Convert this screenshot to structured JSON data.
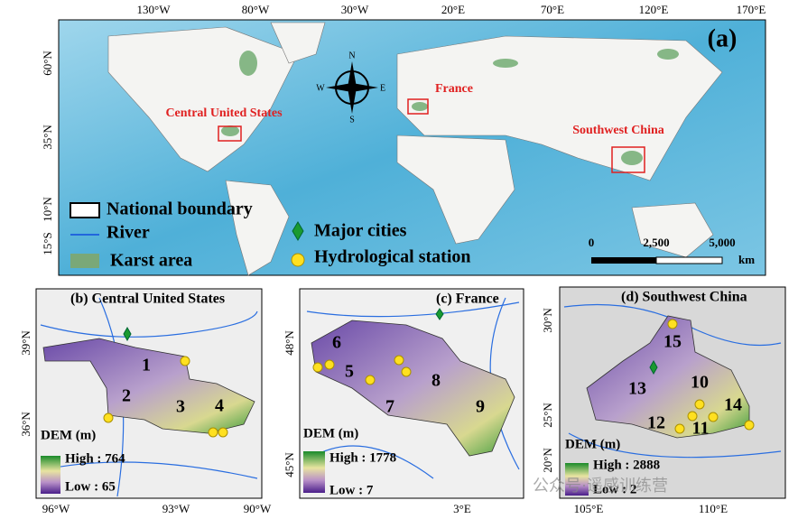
{
  "panel_a": {
    "label": "(a)",
    "lon_ticks": [
      "130°W",
      "80°W",
      "30°W",
      "20°E",
      "70°E",
      "120°E",
      "170°E"
    ],
    "lat_ticks": [
      "60°N",
      "35°N",
      "10°N",
      "15°S"
    ],
    "compass": [
      "N",
      "E",
      "S",
      "W"
    ],
    "regions": [
      "Central United States",
      "France",
      "Southwest China"
    ],
    "legend": [
      "National boundary",
      "River",
      "Karst area",
      "Major cities",
      "Hydrological station"
    ],
    "scale": {
      "ticks": [
        "0",
        "2,500",
        "5,000"
      ],
      "unit": "km"
    }
  },
  "panels": [
    {
      "title": "(b) Central United States",
      "lat_ticks": [
        "39°N",
        "36°N"
      ],
      "lon_ticks": [
        "96°W",
        "93°W",
        "90°W"
      ],
      "basins": [
        "1",
        "2",
        "3",
        "4"
      ],
      "dem_title": "DEM (m)",
      "high": "High : 764",
      "low": "Low : 65"
    },
    {
      "title": "(c) France",
      "lat_ticks": [
        "48°N",
        "45°N"
      ],
      "lon_ticks": [
        "3°E"
      ],
      "basins": [
        "6",
        "5",
        "8",
        "7",
        "9"
      ],
      "dem_title": "DEM (m)",
      "high": "High : 1778",
      "low": "Low : 7"
    },
    {
      "title": "(d) Southwest China",
      "lat_ticks": [
        "30°N",
        "25°N",
        "20°N"
      ],
      "lon_ticks": [
        "105°E",
        "110°E"
      ],
      "basins": [
        "15",
        "13",
        "10",
        "14",
        "12",
        "11"
      ],
      "dem_title": "DEM (m)",
      "high": "High : 2888",
      "low": "Low : 2"
    }
  ],
  "watermark": "公众号·遥感训练营"
}
